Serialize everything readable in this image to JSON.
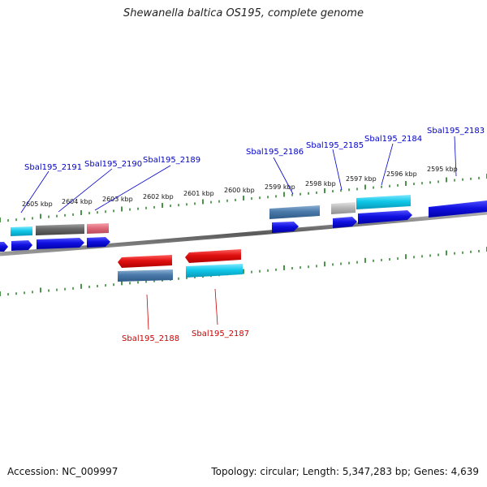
{
  "map": {
    "title": "Shewanella baltica OS195, complete genome",
    "accession": "Accession: NC_009997",
    "summary": "Topology: circular; Length: 5,347,283 bp; Genes: 4,639"
  },
  "ticks": [
    {
      "label": "2605 kbp"
    },
    {
      "label": "2604 kbp"
    },
    {
      "label": "2603 kbp"
    },
    {
      "label": "2602 kbp"
    },
    {
      "label": "2601 kbp"
    },
    {
      "label": "2600 kbp"
    },
    {
      "label": "2599 kbp"
    },
    {
      "label": "2598 kbp"
    },
    {
      "label": "2597 kbp"
    },
    {
      "label": "2596 kbp"
    },
    {
      "label": "2595 kbp"
    }
  ],
  "gene_labels": {
    "top": [
      "Sbal195_2191",
      "Sbal195_2190",
      "Sbal195_2189",
      "Sbal195_2186",
      "Sbal195_2185",
      "Sbal195_2184",
      "Sbal195_2183"
    ],
    "bottom": [
      "Sbal195_2188",
      "Sbal195_2187"
    ]
  },
  "colors": {
    "forward_label": "#0000cc",
    "reverse_label": "#cc0000",
    "backbone": "#777777",
    "tick": "#1a7a1a",
    "cds_blue": "#1010e0",
    "cds_red": "#e01010",
    "cyan": "#10c8e8",
    "steelblue": "#4a7aaa",
    "gray": "#666666",
    "lightgray": "#b8b8b8",
    "pink": "#e06a7a"
  }
}
